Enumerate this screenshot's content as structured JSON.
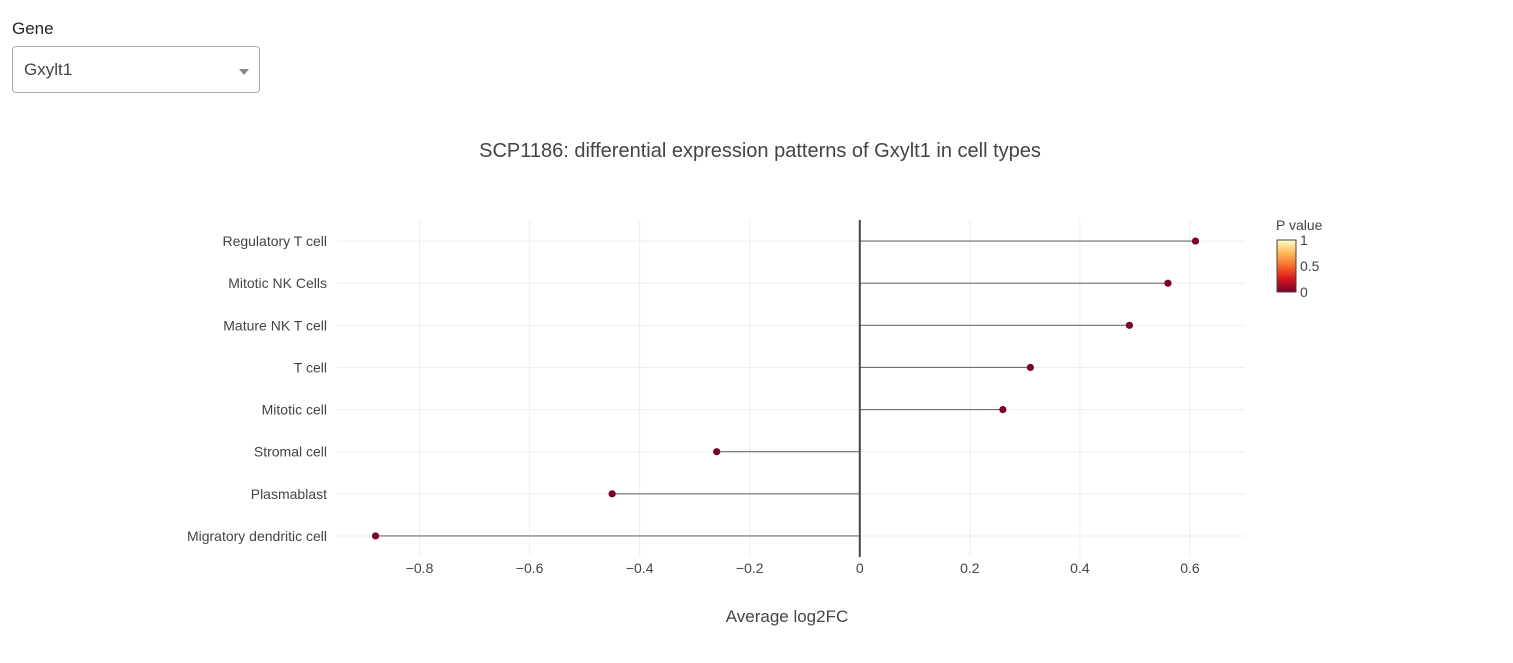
{
  "controls": {
    "gene_label": "Gene",
    "gene_selected": "Gxylt1"
  },
  "chart_data": {
    "type": "lollipop",
    "title": "SCP1186: differential expression patterns of Gxylt1 in cell types",
    "xlabel": "Average log2FC",
    "ylabel": "",
    "xlim": [
      -0.95,
      0.7
    ],
    "xticks": [
      -0.8,
      -0.6,
      -0.4,
      -0.2,
      0,
      0.2,
      0.4,
      0.6
    ],
    "xtick_labels": [
      "−0.8",
      "−0.6",
      "−0.4",
      "−0.2",
      "0",
      "0.2",
      "0.4",
      "0.6"
    ],
    "grid": true,
    "categories": [
      "Regulatory T cell",
      "Mitotic NK Cells",
      "Mature NK T cell",
      "T cell",
      "Mitotic cell",
      "Stromal cell",
      "Plasmablast",
      "Migratory dendritic cell"
    ],
    "values": [
      0.61,
      0.56,
      0.49,
      0.31,
      0.26,
      -0.26,
      -0.45,
      -0.88
    ],
    "p_values": [
      0,
      0,
      0,
      0,
      0,
      0,
      0,
      0
    ],
    "colorbar": {
      "title": "P value",
      "ticks": [
        1,
        0.5,
        0
      ],
      "tick_labels": [
        "1",
        "0.5",
        "0"
      ],
      "colorscale": [
        "#7a0225",
        "#d7151f",
        "#f66a2a",
        "#fdb959",
        "#ffffcc"
      ]
    },
    "marker_color": "#7a0225",
    "stem_color": "#6e6e6e",
    "zero_line_color": "#444444"
  }
}
